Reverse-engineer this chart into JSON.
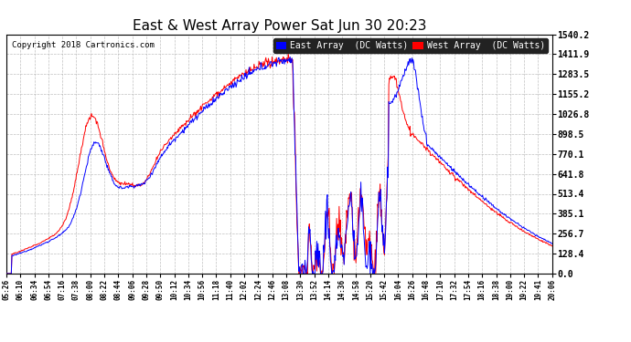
{
  "title": "East & West Array Power Sat Jun 30 20:23",
  "copyright": "Copyright 2018 Cartronics.com",
  "legend_east": "East Array  (DC Watts)",
  "legend_west": "West Array  (DC Watts)",
  "east_color": "#0000ff",
  "west_color": "#ff0000",
  "background_color": "#ffffff",
  "plot_bg_color": "#ffffff",
  "grid_color": "#b0b0b0",
  "yticks": [
    0.0,
    128.4,
    256.7,
    385.1,
    513.4,
    641.8,
    770.1,
    898.5,
    1026.8,
    1155.2,
    1283.5,
    1411.9,
    1540.2
  ],
  "ymax": 1540.2,
  "xtick_labels": [
    "05:26",
    "06:10",
    "06:34",
    "06:54",
    "07:16",
    "07:38",
    "08:00",
    "08:22",
    "08:44",
    "09:06",
    "09:28",
    "09:50",
    "10:12",
    "10:34",
    "10:56",
    "11:18",
    "11:40",
    "12:02",
    "12:24",
    "12:46",
    "13:08",
    "13:30",
    "13:52",
    "14:14",
    "14:36",
    "14:58",
    "15:20",
    "15:42",
    "16:04",
    "16:26",
    "16:48",
    "17:10",
    "17:32",
    "17:54",
    "18:16",
    "18:38",
    "19:00",
    "19:22",
    "19:41",
    "20:06"
  ]
}
